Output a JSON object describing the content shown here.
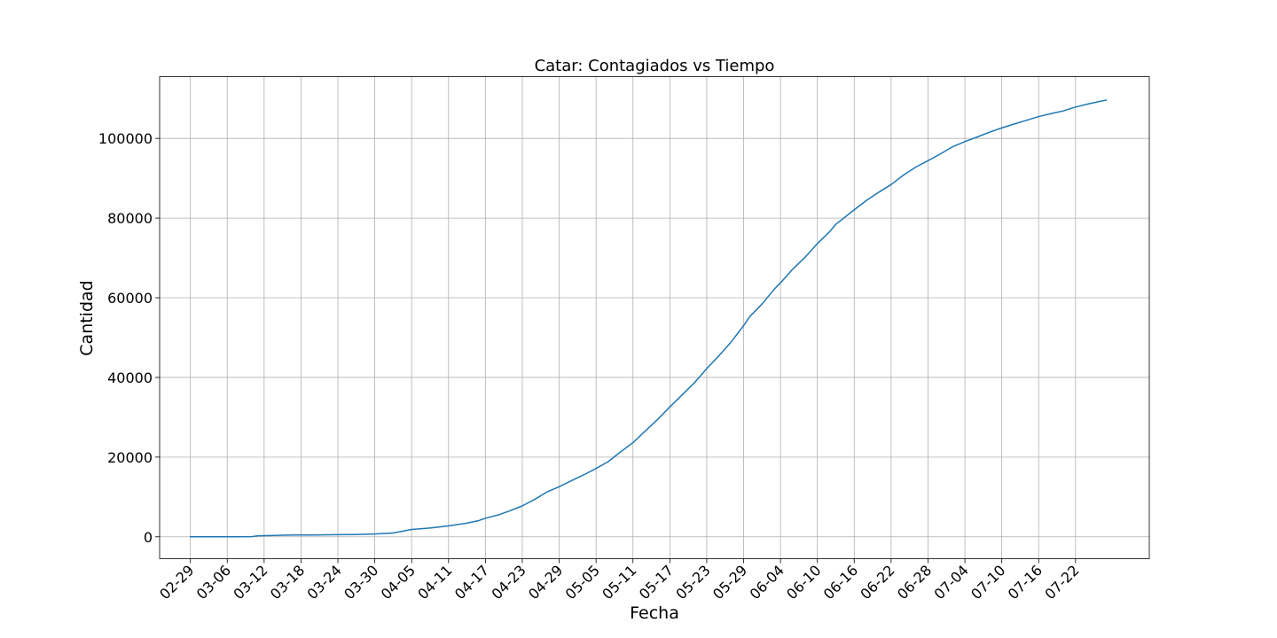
{
  "chart_data": {
    "type": "line",
    "title": "Catar: Contagiados vs Tiempo",
    "xlabel": "Fecha",
    "ylabel": "Cantidad",
    "grid": true,
    "x_ticks": [
      "02-29",
      "03-06",
      "03-12",
      "03-18",
      "03-24",
      "03-30",
      "04-05",
      "04-11",
      "04-17",
      "04-23",
      "04-29",
      "05-05",
      "05-11",
      "05-17",
      "05-23",
      "05-29",
      "06-04",
      "06-10",
      "06-16",
      "06-22",
      "06-28",
      "07-04",
      "07-10",
      "07-16",
      "07-22"
    ],
    "y_ticks": [
      0,
      20000,
      40000,
      60000,
      80000,
      100000
    ],
    "ylim": [
      -5500,
      115500
    ],
    "xlim": [
      "02-24",
      "08-03"
    ],
    "series": [
      {
        "color": "#1f77b4",
        "points": [
          [
            "02-29",
            1
          ],
          [
            "03-04",
            8
          ],
          [
            "03-07",
            15
          ],
          [
            "03-10",
            24
          ],
          [
            "03-11",
            262
          ],
          [
            "03-13",
            320
          ],
          [
            "03-15",
            401
          ],
          [
            "03-17",
            439
          ],
          [
            "03-20",
            460
          ],
          [
            "03-24",
            526
          ],
          [
            "03-27",
            562
          ],
          [
            "03-30",
            693
          ],
          [
            "04-02",
            949
          ],
          [
            "04-05",
            1832
          ],
          [
            "04-08",
            2210
          ],
          [
            "04-11",
            2728
          ],
          [
            "04-14",
            3428
          ],
          [
            "04-16",
            4103
          ],
          [
            "04-17",
            4663
          ],
          [
            "04-19",
            5448
          ],
          [
            "04-21",
            6533
          ],
          [
            "04-23",
            7764
          ],
          [
            "04-25",
            9358
          ],
          [
            "04-27",
            11244
          ],
          [
            "04-29",
            12564
          ],
          [
            "05-01",
            14096
          ],
          [
            "05-03",
            15551
          ],
          [
            "05-05",
            17142
          ],
          [
            "05-07",
            18890
          ],
          [
            "05-09",
            21331
          ],
          [
            "05-11",
            23623
          ],
          [
            "05-13",
            26539
          ],
          [
            "05-15",
            29425
          ],
          [
            "05-17",
            32604
          ],
          [
            "05-19",
            35606
          ],
          [
            "05-21",
            38651
          ],
          [
            "05-23",
            42213
          ],
          [
            "05-25",
            45465
          ],
          [
            "05-27",
            48947
          ],
          [
            "05-29",
            53000
          ],
          [
            "05-30",
            55262
          ],
          [
            "06-01",
            58433
          ],
          [
            "06-03",
            62160
          ],
          [
            "06-04",
            63741
          ],
          [
            "06-06",
            67195
          ],
          [
            "06-08",
            70158
          ],
          [
            "06-10",
            73595
          ],
          [
            "06-12",
            76588
          ],
          [
            "06-13",
            78416
          ],
          [
            "06-16",
            82077
          ],
          [
            "06-18",
            84441
          ],
          [
            "06-20",
            86488
          ],
          [
            "06-22",
            88403
          ],
          [
            "06-24",
            90778
          ],
          [
            "06-26",
            92784
          ],
          [
            "06-28",
            94413
          ],
          [
            "06-30",
            96088
          ],
          [
            "07-02",
            97897
          ],
          [
            "07-04",
            99183
          ],
          [
            "07-06",
            100345
          ],
          [
            "07-08",
            101553
          ],
          [
            "07-10",
            102630
          ],
          [
            "07-12",
            103598
          ],
          [
            "07-14",
            104533
          ],
          [
            "07-16",
            105477
          ],
          [
            "07-18",
            106212
          ],
          [
            "07-20",
            106897
          ],
          [
            "07-22",
            107871
          ],
          [
            "07-24",
            108638
          ],
          [
            "07-26",
            109305
          ],
          [
            "07-27",
            109597
          ]
        ]
      }
    ]
  }
}
